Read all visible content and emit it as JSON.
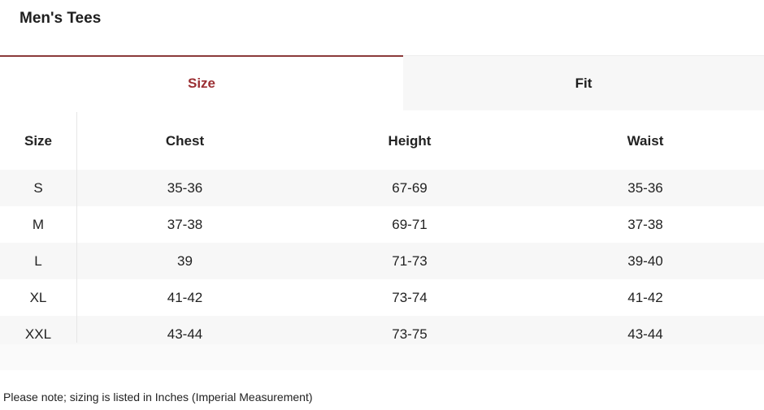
{
  "title": "Men's Tees",
  "tabs": [
    {
      "label": "Size",
      "active": true
    },
    {
      "label": "Fit",
      "active": false
    }
  ],
  "accent_color": "#9b2f33",
  "table": {
    "headers": [
      "Size",
      "Chest",
      "Height",
      "Waist"
    ],
    "rows": [
      [
        "S",
        "35-36",
        "67-69",
        "35-36"
      ],
      [
        "M",
        "37-38",
        "69-71",
        "37-38"
      ],
      [
        "L",
        "39",
        "71-73",
        "39-40"
      ],
      [
        "XL",
        "41-42",
        "73-74",
        "41-42"
      ],
      [
        "XXL",
        "43-44",
        "73-75",
        "43-44"
      ]
    ]
  },
  "note": "Please note; sizing is listed in Inches (Imperial Measurement)"
}
